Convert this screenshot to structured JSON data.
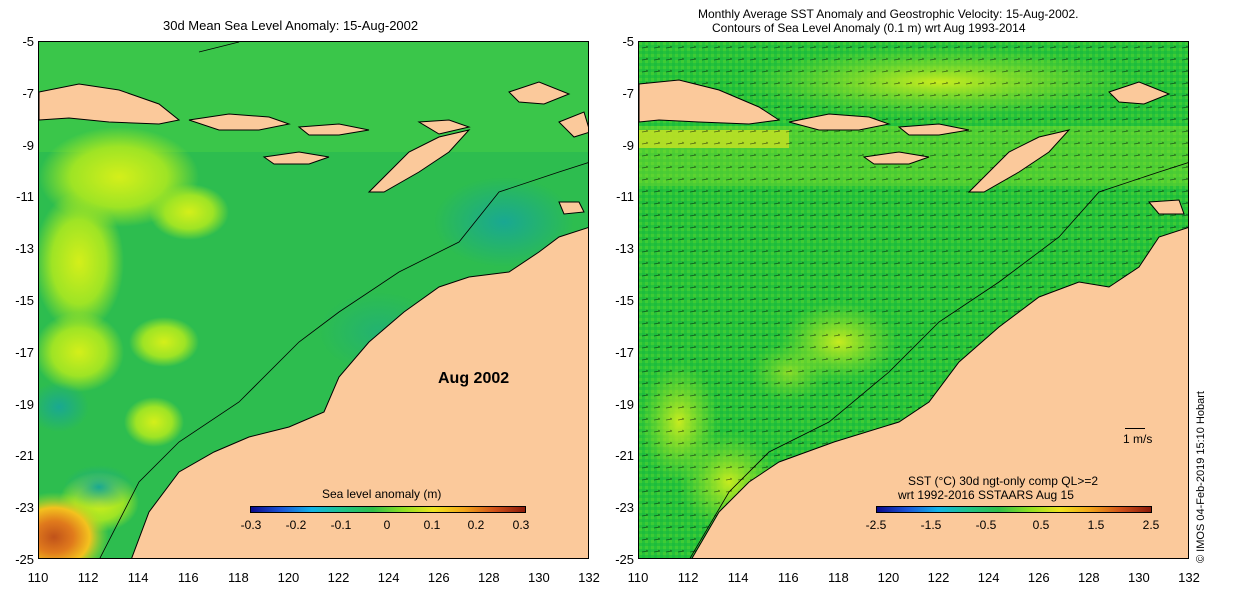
{
  "left_panel": {
    "title": "30d Mean Sea Level Anomaly: 15-Aug-2002",
    "overlay_label": "Aug 2002",
    "colorbar": {
      "title": "Sea level anomaly (m)",
      "ticks": [
        "-0.3",
        "-0.2",
        "-0.1",
        "0",
        "0.1",
        "0.2",
        "0.3"
      ]
    }
  },
  "right_panel": {
    "title_line1": "Monthly Average SST Anomaly  and Geostrophic Velocity: 15-Aug-2002.",
    "title_line2": "Contours of Sea Level Anomaly (0.1 m) wrt Aug 1993-2014",
    "vector_scale_label": "1 m/s",
    "colorbar": {
      "title_line1": "SST (°C) 30d ngt-only comp QL>=2",
      "title_line2": "wrt 1992-2016 SSTAARS Aug 15",
      "ticks": [
        "-2.5",
        "-1.5",
        "-0.5",
        "0.5",
        "1.5",
        "2.5"
      ]
    }
  },
  "axes": {
    "lat_ticks": [
      "-5",
      "-7",
      "-9",
      "-11",
      "-13",
      "-15",
      "-17",
      "-19",
      "-21",
      "-23",
      "-25"
    ],
    "lon_ticks": [
      "110",
      "112",
      "114",
      "116",
      "118",
      "120",
      "122",
      "124",
      "126",
      "128",
      "130",
      "132"
    ]
  },
  "credit": "© IMOS 04-Feb-2019 15:10 Hobart",
  "colors": {
    "land": "#fbc99b",
    "ocean_base": "#2fbf4a",
    "ocean_light": "#7fe02a",
    "ocean_teal": "#1ea98a",
    "ocean_yellow": "#d6f01e",
    "hot": "#d8641a"
  }
}
